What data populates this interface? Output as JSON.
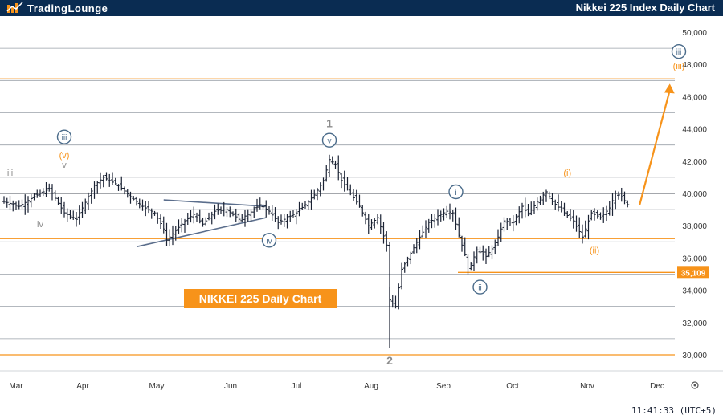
{
  "header": {
    "brand": "TradingLounge",
    "title": "Nikkei 225 Index Daily Chart"
  },
  "footer": {
    "clock": "11:41:33 (UTC+5)"
  },
  "colors": {
    "accent": "#f7931a",
    "header_bg": "#0a2c52",
    "wave_blue": "#4a6b8a",
    "wave_gray": "#8c8c8c",
    "candle": "#1a2233"
  },
  "chart_data": {
    "type": "candlestick",
    "title": "NIKKEI 225 Daily Chart",
    "x_ticks": [
      "Mar",
      "Apr",
      "May",
      "Jun",
      "Jul",
      "Aug",
      "Sep",
      "Oct",
      "Nov",
      "Dec"
    ],
    "y_ticks": [
      "30,000",
      "32,000",
      "34,000",
      "36,000",
      "38,000",
      "40,000",
      "42,000",
      "44,000",
      "46,000",
      "48,000",
      "50,000"
    ],
    "ylim": [
      29000,
      51000
    ],
    "gridlines": [
      31000,
      33000,
      35000,
      37000,
      39000,
      41000,
      43000,
      45000,
      47000,
      49000
    ],
    "price_line": 40000,
    "key_levels": [
      30000,
      37200,
      47100
    ],
    "current_level_label": "35,109",
    "current_level": 35109,
    "price_path": [
      [
        0,
        39500
      ],
      [
        5,
        39200
      ],
      [
        10,
        39800
      ],
      [
        15,
        40300
      ],
      [
        20,
        38800
      ],
      [
        24,
        38400
      ],
      [
        28,
        39800
      ],
      [
        30,
        40500
      ],
      [
        33,
        41000
      ],
      [
        38,
        40500
      ],
      [
        42,
        39800
      ],
      [
        46,
        39200
      ],
      [
        50,
        38800
      ],
      [
        53,
        37800
      ],
      [
        54,
        37100
      ],
      [
        57,
        37700
      ],
      [
        60,
        38300
      ],
      [
        63,
        38700
      ],
      [
        66,
        38100
      ],
      [
        70,
        38900
      ],
      [
        74,
        39000
      ],
      [
        78,
        38400
      ],
      [
        81,
        38700
      ],
      [
        85,
        39300
      ],
      [
        88,
        38900
      ],
      [
        91,
        38200
      ],
      [
        94,
        38500
      ],
      [
        97,
        38800
      ],
      [
        100,
        39300
      ],
      [
        103,
        39900
      ],
      [
        106,
        40800
      ],
      [
        108,
        42100
      ],
      [
        110,
        41800
      ],
      [
        112,
        40800
      ],
      [
        115,
        40000
      ],
      [
        118,
        39200
      ],
      [
        121,
        38000
      ],
      [
        124,
        38500
      ],
      [
        127,
        36800
      ],
      [
        128,
        33400
      ],
      [
        130,
        33000
      ],
      [
        132,
        35300
      ],
      [
        135,
        36300
      ],
      [
        138,
        37300
      ],
      [
        141,
        38200
      ],
      [
        144,
        38600
      ],
      [
        147,
        38900
      ],
      [
        149,
        38800
      ],
      [
        151,
        37400
      ],
      [
        153,
        36200
      ],
      [
        154,
        35200
      ],
      [
        157,
        36500
      ],
      [
        160,
        36100
      ],
      [
        163,
        36800
      ],
      [
        166,
        38300
      ],
      [
        169,
        38200
      ],
      [
        172,
        39200
      ],
      [
        174,
        38700
      ],
      [
        177,
        39500
      ],
      [
        180,
        40100
      ],
      [
        182,
        39500
      ],
      [
        186,
        38800
      ],
      [
        189,
        38300
      ],
      [
        192,
        37300
      ],
      [
        195,
        38800
      ],
      [
        198,
        38500
      ],
      [
        201,
        39100
      ],
      [
        203,
        40000
      ],
      [
        205,
        39800
      ],
      [
        207,
        39300
      ]
    ],
    "triangle": {
      "upper": [
        [
          53,
          39600
        ],
        [
          87,
          39200
        ]
      ],
      "lower": [
        [
          44,
          36700
        ],
        [
          87,
          38500
        ]
      ]
    },
    "wave_labels": [
      {
        "text": "iii",
        "style": "plain",
        "color": "gray",
        "x": 2,
        "y": 41100
      },
      {
        "text": "iv",
        "style": "plain",
        "color": "gray",
        "x": 12,
        "y": 37900
      },
      {
        "text": "iii",
        "style": "circle",
        "color": "blue",
        "x": 20,
        "y": 43300
      },
      {
        "text": "(v)",
        "style": "plain",
        "color": "orange",
        "x": 20,
        "y": 42200
      },
      {
        "text": "v",
        "style": "plain",
        "color": "gray",
        "x": 20,
        "y": 41600
      },
      {
        "text": "iv",
        "style": "circle",
        "color": "blue",
        "x": 88,
        "y": 36900
      },
      {
        "text": "1",
        "style": "plain-large",
        "color": "gray",
        "x": 108,
        "y": 44100
      },
      {
        "text": "v",
        "style": "circle",
        "color": "blue",
        "x": 108,
        "y": 43100
      },
      {
        "text": "2",
        "style": "plain-large",
        "color": "gray",
        "x": 128,
        "y": 29400
      },
      {
        "text": "i",
        "style": "circle",
        "color": "blue",
        "x": 150,
        "y": 39900
      },
      {
        "text": "ii",
        "style": "circle",
        "color": "blue",
        "x": 158,
        "y": 34000
      },
      {
        "text": "(i)",
        "style": "plain",
        "color": "orange",
        "x": 187,
        "y": 41100
      },
      {
        "text": "(ii)",
        "style": "plain",
        "color": "orange",
        "x": 196,
        "y": 36300
      },
      {
        "text": "iii",
        "style": "circle",
        "color": "blue",
        "x": 224,
        "y": 48600
      },
      {
        "text": "(iii)",
        "style": "plain",
        "color": "orange",
        "x": 224,
        "y": 47700
      }
    ],
    "projection": {
      "from": [
        211,
        39300
      ],
      "to": [
        221,
        46800
      ]
    }
  }
}
